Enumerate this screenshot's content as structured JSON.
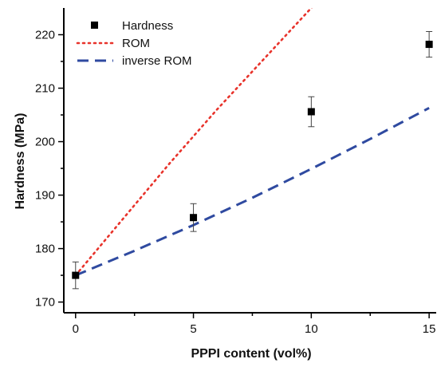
{
  "chart_data": {
    "type": "scatter",
    "xlabel": "PPPI content (vol%)",
    "ylabel": "Hardness (MPa)",
    "xlim": [
      -0.5,
      15.3
    ],
    "ylim": [
      168,
      225
    ],
    "x_ticks": [
      0,
      5,
      10,
      15
    ],
    "y_ticks": [
      170,
      180,
      190,
      200,
      210,
      220
    ],
    "legend_position": "top-left",
    "grid": false,
    "series": [
      {
        "name": "Hardness",
        "kind": "points",
        "color": "#000000",
        "x": [
          0,
          5,
          10,
          15
        ],
        "y": [
          175.0,
          185.8,
          205.6,
          218.2
        ],
        "error": [
          2.5,
          2.6,
          2.8,
          2.4
        ]
      },
      {
        "name": "ROM",
        "kind": "dotted-line",
        "color": "#e8332b",
        "x": [
          0,
          2,
          4,
          6,
          8,
          10,
          11
        ],
        "y": [
          175.0,
          185.5,
          196.0,
          206.0,
          215.5,
          225.0,
          230.0
        ]
      },
      {
        "name": "inverse ROM",
        "kind": "dashed-line",
        "color": "#2f4aa0",
        "x": [
          0,
          2.5,
          5,
          7.5,
          10,
          12.5,
          15
        ],
        "y": [
          175.0,
          179.6,
          184.4,
          189.5,
          194.9,
          200.5,
          206.3
        ]
      }
    ]
  }
}
